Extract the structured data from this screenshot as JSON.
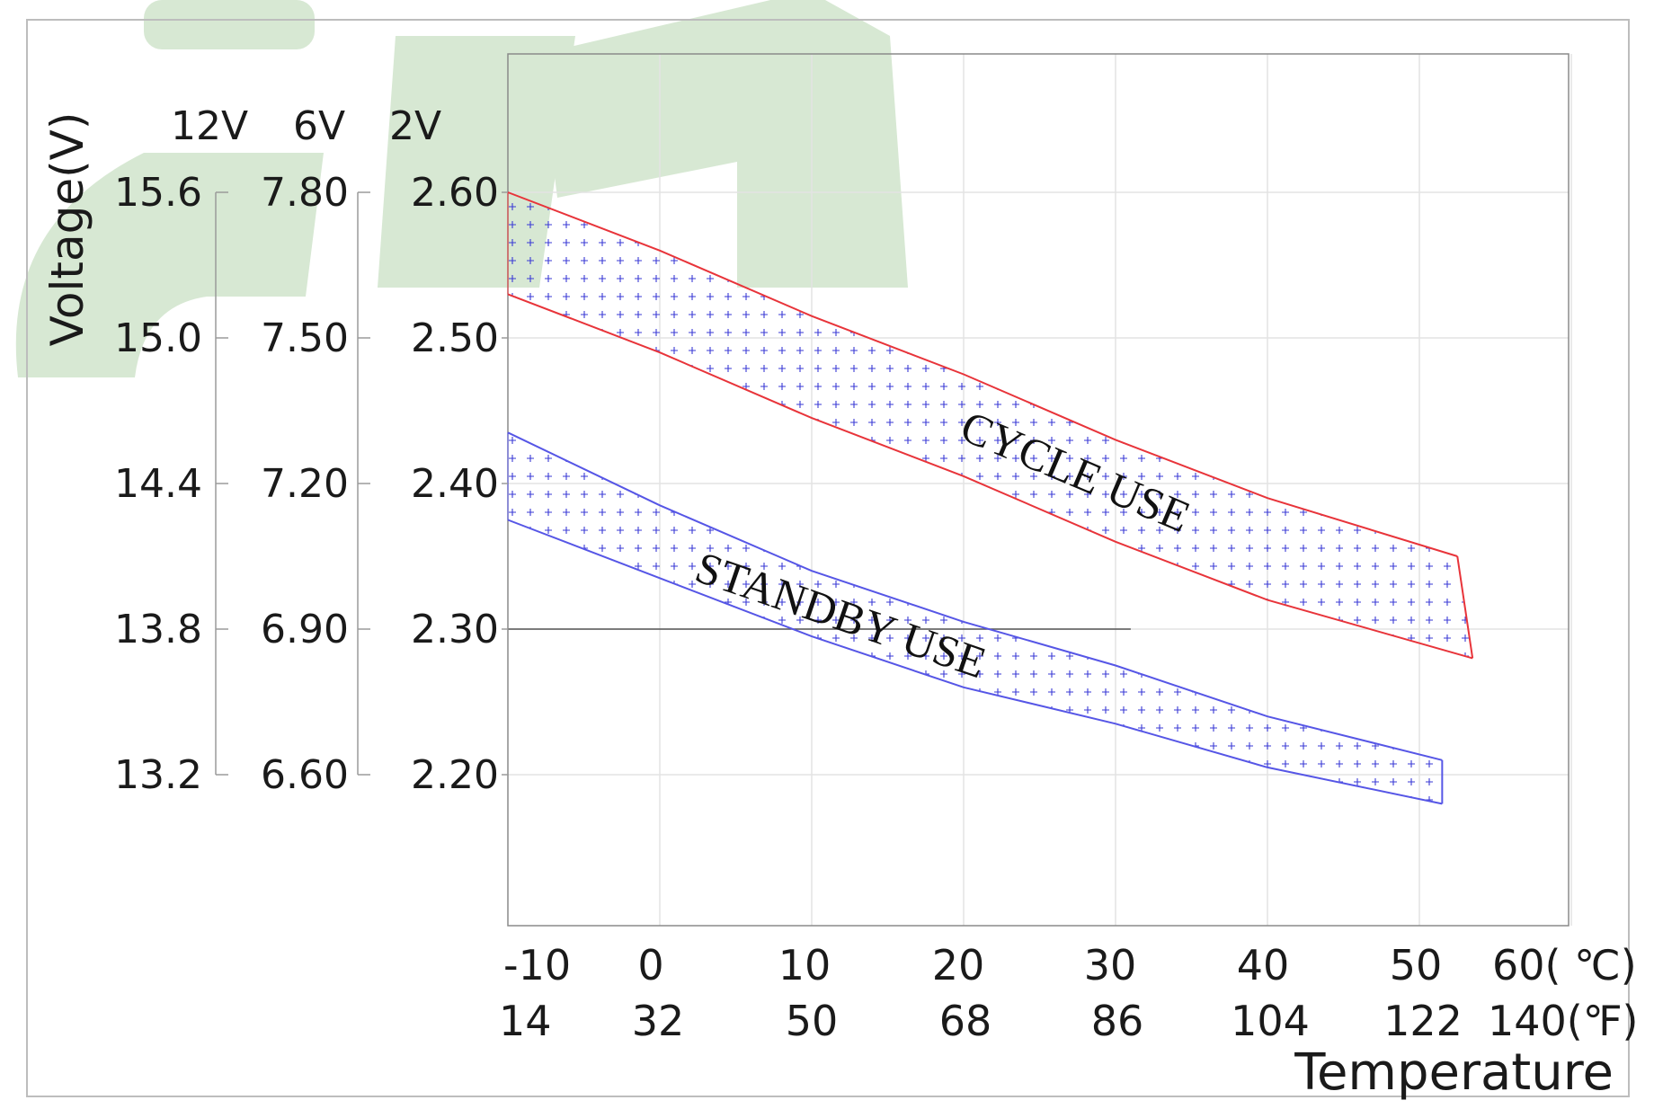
{
  "watermark": {
    "kind": "logo",
    "color": "#d7e8d3"
  },
  "chart_data": {
    "type": "area",
    "title": "",
    "ylabel": "Voltage(V)",
    "xlabel": "Temperature",
    "grid": true,
    "xlim": [
      -10,
      60
    ],
    "ylim": [
      2.1,
      2.7
    ],
    "voltage_scales": [
      {
        "label": "12V",
        "ticks": [
          "15.6",
          "15.0",
          "14.4",
          "13.8",
          "13.2"
        ]
      },
      {
        "label": "6V",
        "ticks": [
          "7.80",
          "7.50",
          "7.20",
          "6.90",
          "6.60"
        ]
      },
      {
        "label": "2V",
        "ticks": [
          "2.60",
          "2.50",
          "2.40",
          "2.30",
          "2.20"
        ]
      }
    ],
    "y_tick_values": [
      2.6,
      2.5,
      2.4,
      2.3,
      2.2
    ],
    "x_ticks_c": [
      {
        "v": -10,
        "t": "-10"
      },
      {
        "v": 0,
        "t": "0"
      },
      {
        "v": 10,
        "t": "10"
      },
      {
        "v": 20,
        "t": "20"
      },
      {
        "v": 30,
        "t": "30"
      },
      {
        "v": 40,
        "t": "40"
      },
      {
        "v": 50,
        "t": "50"
      },
      {
        "v": 60,
        "t": "60( ℃)"
      }
    ],
    "x_ticks_f": [
      "14",
      "32",
      "50",
      "68",
      "86",
      "104",
      "122",
      "140(℉)"
    ],
    "series": [
      {
        "name": "CYCLE USE",
        "color": "#e8343a",
        "fill_marker": "#3a3ad6",
        "upper": [
          [
            -10,
            2.6
          ],
          [
            0,
            2.56
          ],
          [
            10,
            2.515
          ],
          [
            20,
            2.475
          ],
          [
            30,
            2.43
          ],
          [
            40,
            2.39
          ],
          [
            52.5,
            2.35
          ]
        ],
        "lower": [
          [
            -10,
            2.53
          ],
          [
            0,
            2.49
          ],
          [
            10,
            2.445
          ],
          [
            20,
            2.405
          ],
          [
            30,
            2.36
          ],
          [
            40,
            2.32
          ],
          [
            53.5,
            2.28
          ]
        ]
      },
      {
        "name": "STANDBY USE",
        "color": "#5656e6",
        "fill_marker": "#3a3ad6",
        "upper": [
          [
            -10,
            2.435
          ],
          [
            0,
            2.385
          ],
          [
            10,
            2.34
          ],
          [
            20,
            2.305
          ],
          [
            30,
            2.275
          ],
          [
            40,
            2.24
          ],
          [
            51.5,
            2.21
          ]
        ],
        "lower": [
          [
            -10,
            2.375
          ],
          [
            0,
            2.335
          ],
          [
            10,
            2.295
          ],
          [
            20,
            2.26
          ],
          [
            30,
            2.235
          ],
          [
            40,
            2.205
          ],
          [
            51.5,
            2.18
          ]
        ]
      }
    ]
  }
}
